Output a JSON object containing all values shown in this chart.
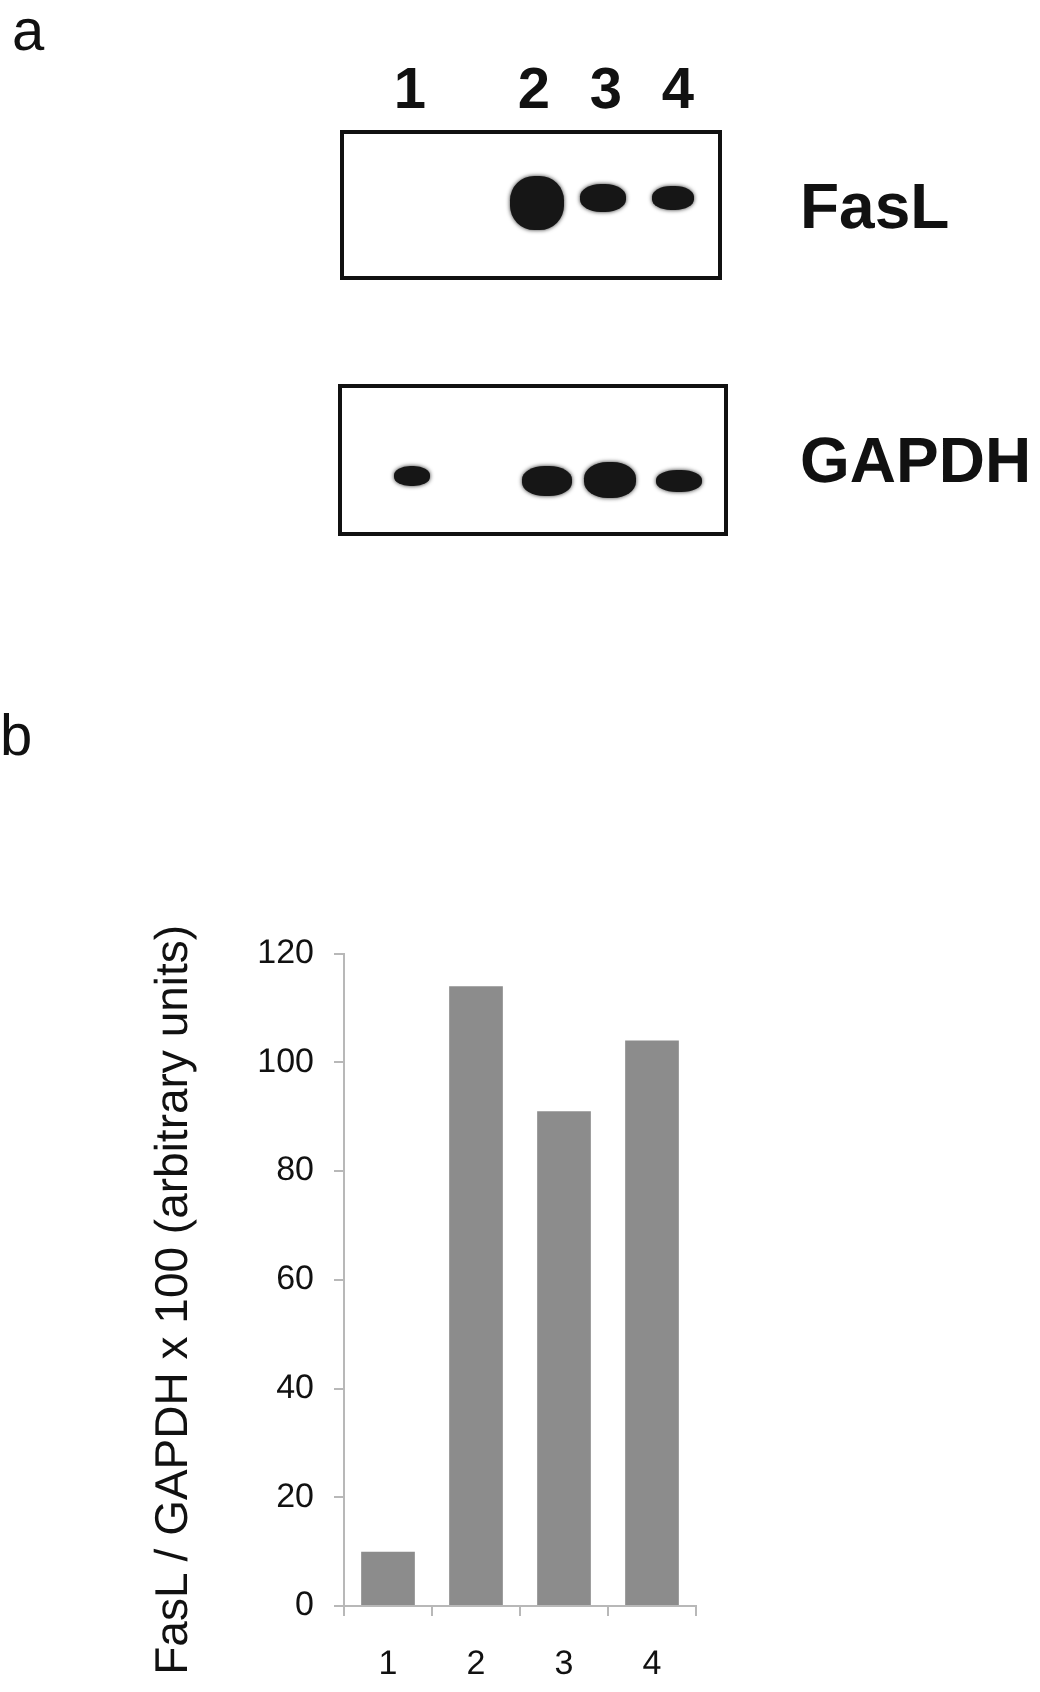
{
  "chart_data": [
    {
      "type": "other",
      "title": "a",
      "categories": [
        "1",
        "2",
        "3",
        "4"
      ],
      "y_categories": [
        "FasL",
        "GAPDH"
      ]
    },
    {
      "type": "bar",
      "title": "b",
      "ylabel": "FasL / GAPDH x 100 (arbitrary units)",
      "categories": [
        "1",
        "2",
        "3",
        "4"
      ],
      "values": [
        10,
        114,
        91,
        104
      ],
      "color": "#8c8c8c",
      "ylim": [
        0,
        120
      ],
      "yticks": [
        0,
        20,
        40,
        60,
        80,
        100,
        120
      ],
      "grid": false
    }
  ]
}
